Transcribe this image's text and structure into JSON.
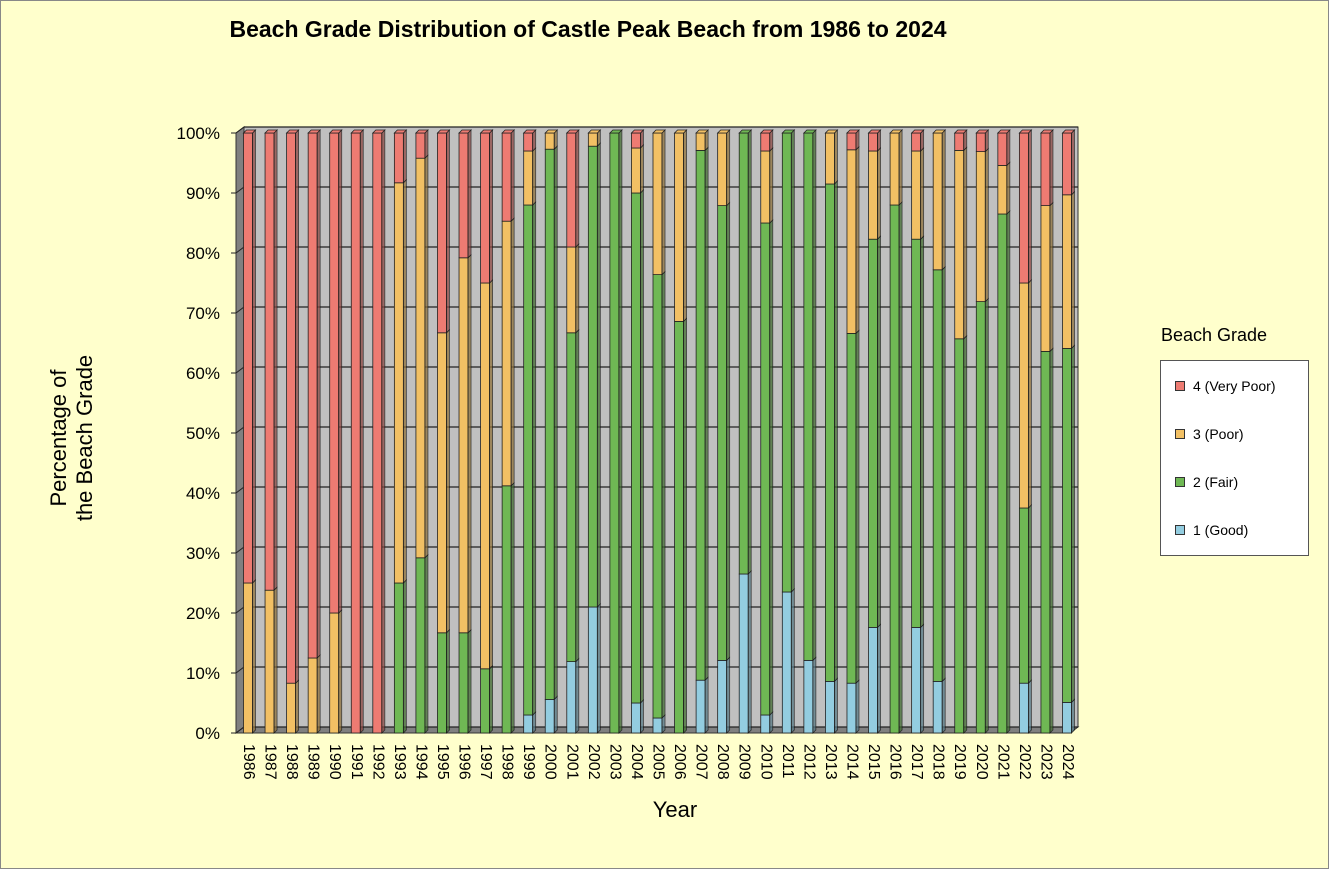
{
  "title": "Beach Grade Distribution of Castle Peak Beach from 1986 to 2024",
  "chart_data": {
    "type": "bar",
    "stacked": true,
    "percent": true,
    "title": "Beach Grade Distribution of Castle Peak Beach from 1986 to 2024",
    "xlabel": "Year",
    "ylabel_lines": [
      "Percentage of",
      "the Beach Grade"
    ],
    "ylim": [
      0,
      100
    ],
    "yticks": [
      "0%",
      "10%",
      "20%",
      "30%",
      "40%",
      "50%",
      "60%",
      "70%",
      "80%",
      "90%",
      "100%"
    ],
    "grid": true,
    "legend_title": "Beach Grade",
    "legend_position": "right",
    "categories": [
      "1986",
      "1987",
      "1988",
      "1989",
      "1990",
      "1991",
      "1992",
      "1993",
      "1994",
      "1995",
      "1996",
      "1997",
      "1998",
      "1999",
      "2000",
      "2001",
      "2002",
      "2003",
      "2004",
      "2005",
      "2006",
      "2007",
      "2008",
      "2009",
      "2010",
      "2011",
      "2012",
      "2013",
      "2014",
      "2015",
      "2016",
      "2017",
      "2018",
      "2019",
      "2020",
      "2021",
      "2022",
      "2023",
      "2024"
    ],
    "series": [
      {
        "name": "1  (Good)",
        "color": "#93cde0",
        "values": [
          0,
          0,
          0,
          0,
          0,
          0,
          0,
          0,
          0,
          0,
          0,
          0,
          0,
          3,
          5.6,
          11.9,
          21,
          0,
          5,
          2.5,
          0,
          8.8,
          12.1,
          26.5,
          3,
          23.5,
          12.1,
          8.6,
          8.3,
          17.6,
          0,
          17.6,
          8.6,
          0,
          0,
          0,
          8.3,
          0,
          5.1
        ]
      },
      {
        "name": "2  (Fair)",
        "color": "#6fb854",
        "values": [
          0,
          0,
          0,
          0,
          0,
          0,
          0,
          25,
          29.2,
          16.7,
          16.7,
          10.7,
          41.2,
          85,
          91.7,
          54.8,
          76.8,
          100,
          85,
          73.9,
          68.6,
          88.3,
          75.8,
          73.5,
          82,
          76.5,
          87.9,
          82.9,
          58.3,
          64.7,
          88,
          64.7,
          68.6,
          65.7,
          71.9,
          86.5,
          29.2,
          63.6,
          59
        ]
      },
      {
        "name": "3  (Poor)",
        "color": "#f2c064",
        "values": [
          25,
          23.8,
          8.3,
          12.5,
          20,
          0,
          0,
          66.7,
          66.6,
          50,
          62.5,
          64.3,
          44.1,
          9,
          2.7,
          14.3,
          2.2,
          0,
          7.5,
          23.6,
          31.4,
          2.9,
          12.1,
          0,
          12,
          0,
          0,
          8.5,
          30.6,
          14.7,
          12,
          14.7,
          22.8,
          31.4,
          25,
          8.1,
          37.5,
          24.3,
          25.6
        ]
      },
      {
        "name": "4  (Very Poor)",
        "color": "#ee7b72",
        "values": [
          75,
          76.2,
          91.7,
          87.5,
          80,
          100,
          100,
          8.3,
          4.2,
          33.3,
          20.8,
          25,
          14.7,
          3,
          0,
          19,
          0,
          0,
          2.5,
          0,
          0,
          0,
          0,
          0,
          3,
          0,
          0,
          0,
          2.8,
          3,
          0,
          3,
          0,
          2.9,
          3.1,
          5.4,
          25,
          12.1,
          10.3
        ]
      }
    ]
  }
}
